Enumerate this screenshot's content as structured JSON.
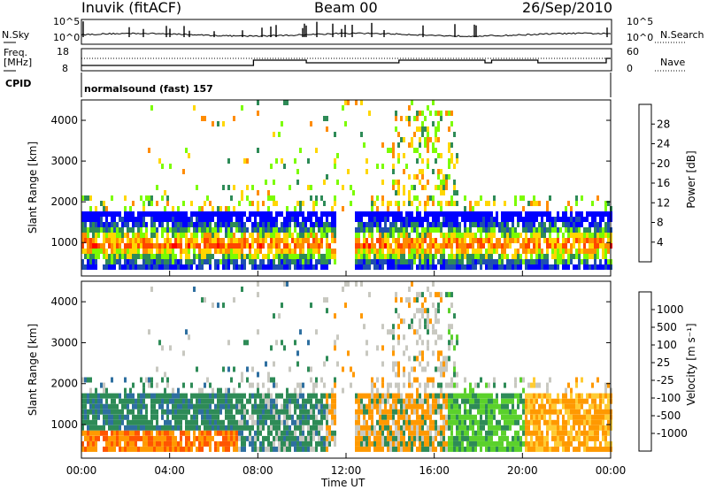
{
  "header": {
    "station": "Inuvik (fitACF)",
    "beam": "Beam 00",
    "date": "26/Sep/2010"
  },
  "strip_labels": {
    "nsky": "N.Sky",
    "nsearch": "N.Search",
    "freq_line1": "Freq.",
    "freq_line2": "[MHz]",
    "nave": "Nave",
    "cpid": "CPID",
    "cpid_text": "normalsound (fast) 157",
    "noise_tick_top": "10^5",
    "noise_tick_bottom": "10^0",
    "freq_tick_top": "18",
    "freq_tick_bottom": "8",
    "nave_tick_top": "60",
    "nave_tick_bottom": "0"
  },
  "colors": {
    "power": [
      "#0000ff",
      "#1f4fb0",
      "#2e8b57",
      "#7cfc00",
      "#ffd700",
      "#ff8c00",
      "#ff4500",
      "#ff0000"
    ],
    "velocity": [
      "#1030b0",
      "#2e6fa0",
      "#2e8b57",
      "#5bd12c",
      "#c8c8c0",
      "#ffcc33",
      "#ff9900",
      "#ff5500",
      "#ff0000"
    ]
  },
  "chart_data": [
    {
      "type": "heatmap",
      "panel": "power",
      "xlabel": "",
      "ylabel": "Slant Range [km]",
      "xlim": [
        0,
        24
      ],
      "ylim": [
        180,
        4500
      ],
      "yticks": [
        1000,
        2000,
        3000,
        4000
      ],
      "colorbar_label": "Power [dB]",
      "colorbar_ticks": [
        "4",
        "8",
        "12",
        "16",
        "20",
        "24",
        "28"
      ],
      "colorbar_range": [
        0,
        30
      ]
    },
    {
      "type": "heatmap",
      "panel": "velocity",
      "xlabel": "Time UT",
      "ylabel": "Slant Range [km]",
      "xlim": [
        0,
        24
      ],
      "ylim": [
        180,
        4500
      ],
      "xticks": [
        "00:00",
        "04:00",
        "08:00",
        "12:00",
        "16:00",
        "20:00",
        "00:00"
      ],
      "yticks": [
        1000,
        2000,
        3000,
        4000
      ],
      "colorbar_label": "Velocity [m s⁻¹]",
      "colorbar_ticks": [
        "1000",
        "500",
        "100",
        "25",
        "-25",
        "-100",
        "-500",
        "-1000"
      ]
    }
  ]
}
